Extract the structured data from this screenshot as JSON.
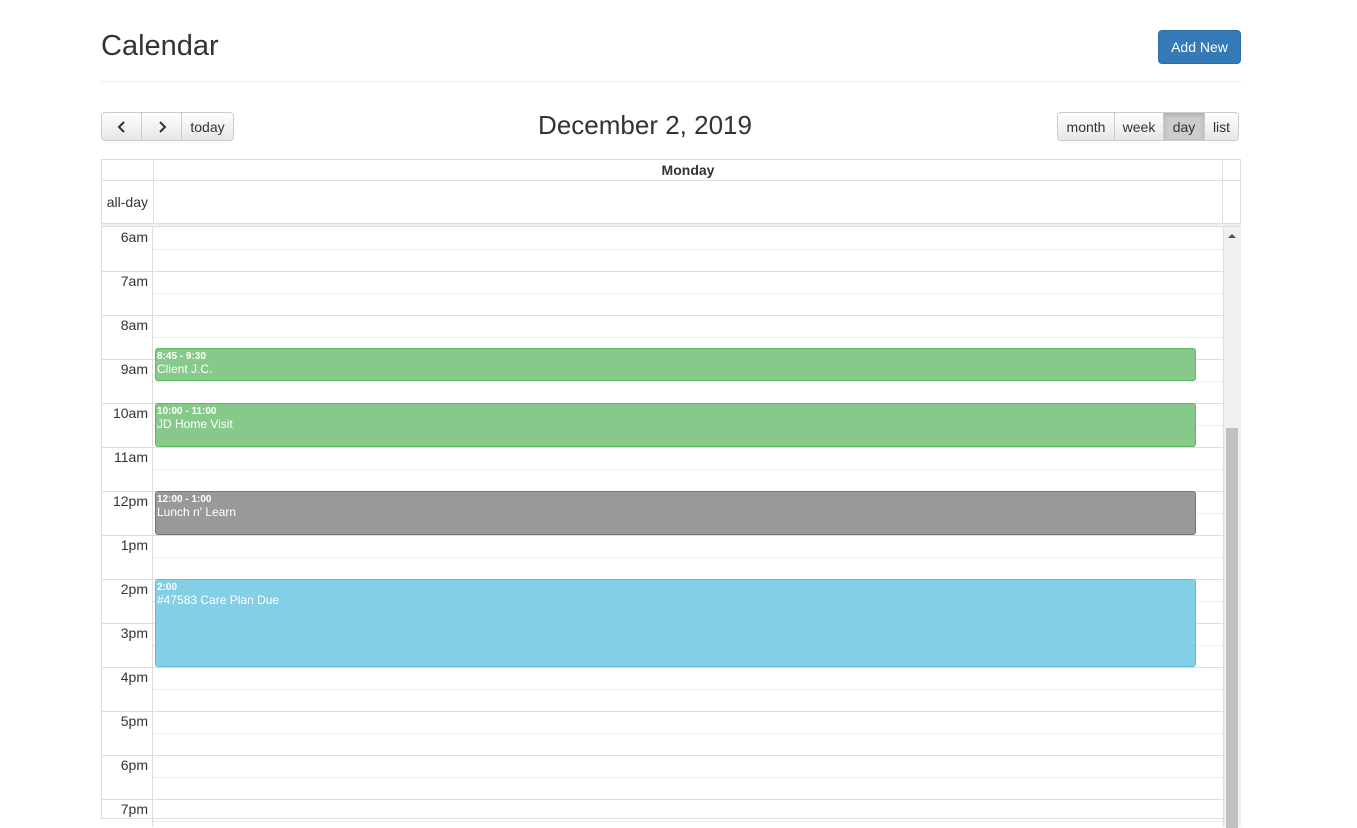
{
  "header": {
    "title": "Calendar",
    "button": "Add New"
  },
  "toolbar": {
    "today": "today",
    "title": "December 2, 2019",
    "views": [
      "month",
      "week",
      "day",
      "list"
    ],
    "active_view": "day"
  },
  "grid": {
    "day_header": "Monday",
    "all_day_label": "all-day",
    "time_labels": [
      "6am",
      "7am",
      "8am",
      "9am",
      "10am",
      "11am",
      "12pm",
      "1pm",
      "2pm",
      "3pm",
      "4pm",
      "5pm",
      "6pm",
      "7pm"
    ],
    "events": [
      {
        "time": "8:45 - 9:30",
        "title": "Client J.C.",
        "color": "#86c98a"
      },
      {
        "time": "10:00 - 11:00",
        "title": "JD Home Visit",
        "color": "#86c98a"
      },
      {
        "time": "12:00 - 1:00",
        "title": "Lunch n' Learn",
        "color": "#999999"
      },
      {
        "time": "2:00",
        "title": "#47583 Care Plan Due",
        "color": "#82cfe6"
      }
    ]
  }
}
